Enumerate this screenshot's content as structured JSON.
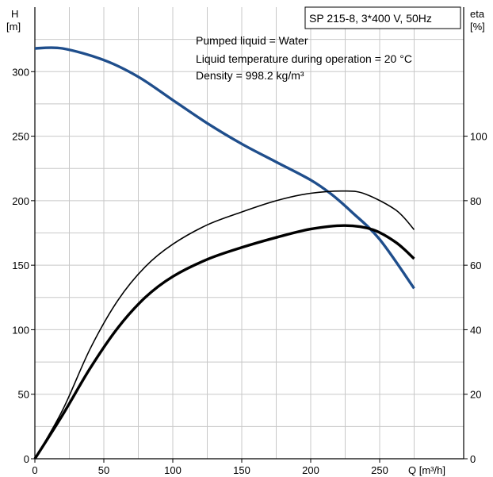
{
  "chart_data": {
    "type": "line",
    "title_box": "SP 215-8, 3*400 V, 50Hz",
    "annotations": [
      "Pumped liquid = Water",
      "Liquid temperature during operation = 20 °C",
      "Density = 998.2 kg/m³"
    ],
    "xlabel": "Q [m³/h]",
    "ylabel_left_line1": "H",
    "ylabel_left_line2": "[m]",
    "ylabel_right_line1": "eta",
    "ylabel_right_line2": "[%]",
    "xlim": [
      0,
      300
    ],
    "ylim_left": [
      0,
      350
    ],
    "ylim_right": [
      0,
      140
    ],
    "x_ticks": [
      0,
      50,
      100,
      150,
      200,
      250
    ],
    "y_ticks_left": [
      0,
      50,
      100,
      150,
      200,
      250,
      300
    ],
    "y_ticks_right": [
      0,
      20,
      40,
      60,
      80,
      100
    ],
    "grid": true,
    "series": [
      {
        "axis": "left",
        "color": "#1f4e8c",
        "points": [
          [
            0,
            318
          ],
          [
            20,
            318
          ],
          [
            50,
            309
          ],
          [
            75,
            296
          ],
          [
            100,
            278
          ],
          [
            125,
            260
          ],
          [
            150,
            244
          ],
          [
            175,
            230
          ],
          [
            200,
            216
          ],
          [
            215,
            205
          ],
          [
            230,
            191
          ],
          [
            250,
            170
          ],
          [
            275,
            132
          ]
        ]
      },
      {
        "axis": "right",
        "color": "#000000",
        "points": [
          [
            0,
            0
          ],
          [
            20,
            15
          ],
          [
            40,
            34
          ],
          [
            60,
            49
          ],
          [
            80,
            59.5
          ],
          [
            100,
            66.5
          ],
          [
            125,
            72.5
          ],
          [
            150,
            76.5
          ],
          [
            175,
            80
          ],
          [
            200,
            82.3
          ],
          [
            225,
            83
          ],
          [
            240,
            82
          ],
          [
            262,
            77
          ],
          [
            275,
            71
          ]
        ]
      },
      {
        "axis": "right",
        "color": "#000000",
        "points": [
          [
            0,
            0
          ],
          [
            20,
            13.5
          ],
          [
            40,
            28
          ],
          [
            60,
            40.5
          ],
          [
            80,
            50
          ],
          [
            100,
            56.5
          ],
          [
            125,
            61.8
          ],
          [
            150,
            65.5
          ],
          [
            175,
            68.6
          ],
          [
            200,
            71.2
          ],
          [
            225,
            72.3
          ],
          [
            245,
            71
          ],
          [
            262,
            67
          ],
          [
            275,
            62
          ]
        ]
      }
    ]
  }
}
